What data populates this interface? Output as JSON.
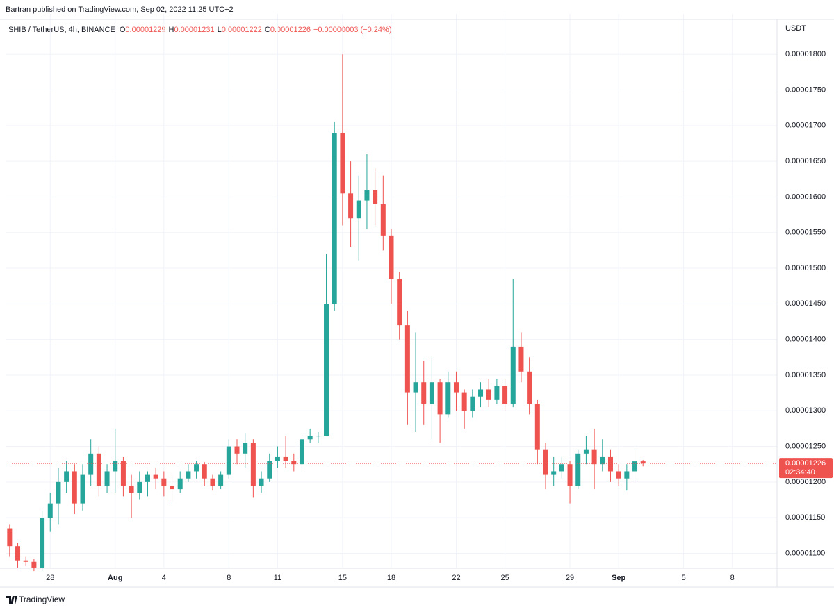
{
  "publisher": "Bartran published on TradingView.com, Sep 02, 2022 11:25 UTC+2",
  "header": {
    "symbol": "SHIB / TetherUS, 4h, BINANCE",
    "ohlc": [
      {
        "key": "O",
        "value": "0.00001229"
      },
      {
        "key": "H",
        "value": "0.00001231"
      },
      {
        "key": "L",
        "value": "0.00001222"
      },
      {
        "key": "C",
        "value": "0.00001226"
      }
    ],
    "change": "−0.00000003 (−0.24%)"
  },
  "branding": "TradingView",
  "chart_data": {
    "type": "candlestick",
    "y_unit": "USDT",
    "up_color": "#26a69a",
    "down_color": "#ef5350",
    "ylim": [
      1.079e-05,
      1.847e-05
    ],
    "yticks": [
      {
        "value": 1.1e-05,
        "label": "0.00001100"
      },
      {
        "value": 1.15e-05,
        "label": "0.00001150"
      },
      {
        "value": 1.2e-05,
        "label": "0.00001200"
      },
      {
        "value": 1.25e-05,
        "label": "0.00001250"
      },
      {
        "value": 1.3e-05,
        "label": "0.00001300"
      },
      {
        "value": 1.35e-05,
        "label": "0.00001350"
      },
      {
        "value": 1.4e-05,
        "label": "0.00001400"
      },
      {
        "value": 1.45e-05,
        "label": "0.00001450"
      },
      {
        "value": 1.5e-05,
        "label": "0.00001500"
      },
      {
        "value": 1.55e-05,
        "label": "0.00001550"
      },
      {
        "value": 1.6e-05,
        "label": "0.00001600"
      },
      {
        "value": 1.65e-05,
        "label": "0.00001650"
      },
      {
        "value": 1.7e-05,
        "label": "0.00001700"
      },
      {
        "value": 1.75e-05,
        "label": "0.00001750"
      },
      {
        "value": 1.8e-05,
        "label": "0.00001800"
      }
    ],
    "grid": true,
    "last_price": {
      "value": 1.226e-05,
      "label": "0.00001226"
    },
    "countdown": "02:34:40",
    "categories": [
      null,
      null,
      null,
      null,
      null,
      "28",
      null,
      null,
      null,
      null,
      null,
      null,
      null,
      "Aug",
      null,
      null,
      null,
      null,
      null,
      "4",
      null,
      null,
      null,
      null,
      null,
      null,
      null,
      "8",
      null,
      null,
      null,
      null,
      null,
      "11",
      null,
      null,
      null,
      null,
      null,
      null,
      null,
      "15",
      null,
      null,
      null,
      null,
      null,
      "18",
      null,
      null,
      null,
      null,
      null,
      null,
      null,
      "22",
      null,
      null,
      null,
      null,
      null,
      "25",
      null,
      null,
      null,
      null,
      null,
      null,
      null,
      "29",
      null,
      null,
      null,
      null,
      null,
      "Sep",
      null,
      null,
      null,
      null,
      null,
      null,
      null,
      "5",
      null,
      null,
      null,
      null,
      null,
      "8",
      null,
      null,
      null,
      null,
      null
    ],
    "open": [
      1.135e-05,
      1.11e-05,
      1.09e-05,
      1.088e-05,
      1.08e-05,
      1.15e-05,
      1.17e-05,
      1.2e-05,
      1.215e-05,
      1.17e-05,
      1.21e-05,
      1.24e-05,
      1.195e-05,
      1.215e-05,
      1.23e-05,
      1.195e-05,
      1.185e-05,
      1.2e-05,
      1.21e-05,
      1.205e-05,
      1.195e-05,
      1.19e-05,
      1.205e-05,
      1.215e-05,
      1.225e-05,
      1.205e-05,
      1.195e-05,
      1.21e-05,
      1.25e-05,
      1.24e-05,
      1.255e-05,
      1.195e-05,
      1.205e-05,
      1.23e-05,
      1.235e-05,
      1.23e-05,
      1.225e-05,
      1.26e-05,
      1.265e-05,
      1.265e-05,
      1.45e-05,
      1.69e-05,
      1.605e-05,
      1.57e-05,
      1.595e-05,
      1.61e-05,
      1.59e-05,
      1.545e-05,
      1.485e-05,
      1.42e-05,
      1.325e-05,
      1.34e-05,
      1.31e-05,
      1.34e-05,
      1.295e-05,
      1.34e-05,
      1.325e-05,
      1.3e-05,
      1.32e-05,
      1.33e-05,
      1.315e-05,
      1.335e-05,
      1.31e-05,
      1.39e-05,
      1.355e-05,
      1.31e-05,
      1.245e-05,
      1.21e-05,
      1.215e-05,
      1.225e-05,
      1.195e-05,
      1.24e-05,
      1.245e-05,
      1.225e-05,
      1.235e-05,
      1.215e-05,
      1.205e-05,
      1.215e-05,
      1.229e-05,
      null,
      null,
      null,
      null,
      null,
      null,
      null,
      null,
      null,
      null,
      null,
      null,
      null,
      null,
      null,
      null
    ],
    "high": [
      1.14e-05,
      1.115e-05,
      1.095e-05,
      1.092e-05,
      1.16e-05,
      1.185e-05,
      1.22e-05,
      1.23e-05,
      1.225e-05,
      1.225e-05,
      1.26e-05,
      1.25e-05,
      1.225e-05,
      1.275e-05,
      1.235e-05,
      1.21e-05,
      1.215e-05,
      1.215e-05,
      1.22e-05,
      1.215e-05,
      1.21e-05,
      1.215e-05,
      1.225e-05,
      1.23e-05,
      1.228e-05,
      1.21e-05,
      1.215e-05,
      1.26e-05,
      1.26e-05,
      1.268e-05,
      1.26e-05,
      1.215e-05,
      1.24e-05,
      1.25e-05,
      1.265e-05,
      1.24e-05,
      1.265e-05,
      1.275e-05,
      1.27e-05,
      1.52e-05,
      1.705e-05,
      1.8e-05,
      1.65e-05,
      1.63e-05,
      1.66e-05,
      1.64e-05,
      1.63e-05,
      1.555e-05,
      1.495e-05,
      1.44e-05,
      1.41e-05,
      1.37e-05,
      1.375e-05,
      1.345e-05,
      1.355e-05,
      1.355e-05,
      1.33e-05,
      1.33e-05,
      1.34e-05,
      1.345e-05,
      1.345e-05,
      1.345e-05,
      1.485e-05,
      1.41e-05,
      1.375e-05,
      1.315e-05,
      1.255e-05,
      1.235e-05,
      1.235e-05,
      1.23e-05,
      1.245e-05,
      1.265e-05,
      1.275e-05,
      1.26e-05,
      1.245e-05,
      1.225e-05,
      1.225e-05,
      1.245e-05,
      1.231e-05,
      null,
      null,
      null,
      null,
      null,
      null,
      null,
      null,
      null,
      null,
      null,
      null,
      null,
      null,
      null,
      null
    ],
    "low": [
      1.095e-05,
      1.08e-05,
      1.082e-05,
      1.075e-05,
      1.075e-05,
      1.13e-05,
      1.14e-05,
      1.185e-05,
      1.155e-05,
      1.16e-05,
      1.195e-05,
      1.18e-05,
      1.185e-05,
      1.185e-05,
      1.18e-05,
      1.15e-05,
      1.175e-05,
      1.18e-05,
      1.19e-05,
      1.18e-05,
      1.172e-05,
      1.185e-05,
      1.2e-05,
      1.205e-05,
      1.195e-05,
      1.188e-05,
      1.19e-05,
      1.205e-05,
      1.225e-05,
      1.22e-05,
      1.178e-05,
      1.185e-05,
      1.2e-05,
      1.22e-05,
      1.22e-05,
      1.215e-05,
      1.22e-05,
      1.255e-05,
      1.255e-05,
      1.265e-05,
      1.44e-05,
      1.56e-05,
      1.53e-05,
      1.51e-05,
      1.555e-05,
      1.56e-05,
      1.525e-05,
      1.45e-05,
      1.4e-05,
      1.28e-05,
      1.27e-05,
      1.28e-05,
      1.26e-05,
      1.255e-05,
      1.29e-05,
      1.3e-05,
      1.275e-05,
      1.29e-05,
      1.305e-05,
      1.305e-05,
      1.31e-05,
      1.3e-05,
      1.305e-05,
      1.34e-05,
      1.295e-05,
      1.225e-05,
      1.19e-05,
      1.195e-05,
      1.205e-05,
      1.17e-05,
      1.19e-05,
      1.225e-05,
      1.19e-05,
      1.215e-05,
      1.2e-05,
      1.195e-05,
      1.188e-05,
      1.2e-05,
      1.222e-05,
      null,
      null,
      null,
      null,
      null,
      null,
      null,
      null,
      null,
      null,
      null,
      null,
      null,
      null,
      null,
      null
    ],
    "close": [
      1.11e-05,
      1.09e-05,
      1.088e-05,
      1.08e-05,
      1.15e-05,
      1.17e-05,
      1.2e-05,
      1.215e-05,
      1.17e-05,
      1.21e-05,
      1.24e-05,
      1.195e-05,
      1.215e-05,
      1.23e-05,
      1.195e-05,
      1.185e-05,
      1.2e-05,
      1.21e-05,
      1.205e-05,
      1.195e-05,
      1.19e-05,
      1.205e-05,
      1.215e-05,
      1.225e-05,
      1.205e-05,
      1.195e-05,
      1.21e-05,
      1.25e-05,
      1.24e-05,
      1.255e-05,
      1.195e-05,
      1.205e-05,
      1.23e-05,
      1.235e-05,
      1.23e-05,
      1.225e-05,
      1.26e-05,
      1.265e-05,
      1.265e-05,
      1.45e-05,
      1.69e-05,
      1.605e-05,
      1.57e-05,
      1.595e-05,
      1.61e-05,
      1.59e-05,
      1.545e-05,
      1.485e-05,
      1.42e-05,
      1.325e-05,
      1.34e-05,
      1.31e-05,
      1.34e-05,
      1.295e-05,
      1.34e-05,
      1.325e-05,
      1.3e-05,
      1.32e-05,
      1.33e-05,
      1.315e-05,
      1.335e-05,
      1.31e-05,
      1.39e-05,
      1.355e-05,
      1.31e-05,
      1.245e-05,
      1.21e-05,
      1.215e-05,
      1.225e-05,
      1.195e-05,
      1.24e-05,
      1.245e-05,
      1.225e-05,
      1.235e-05,
      1.215e-05,
      1.205e-05,
      1.215e-05,
      1.229e-05,
      1.226e-05,
      null,
      null,
      null,
      null,
      null,
      null,
      null,
      null,
      null,
      null,
      null,
      null,
      null,
      null,
      null,
      null
    ]
  }
}
